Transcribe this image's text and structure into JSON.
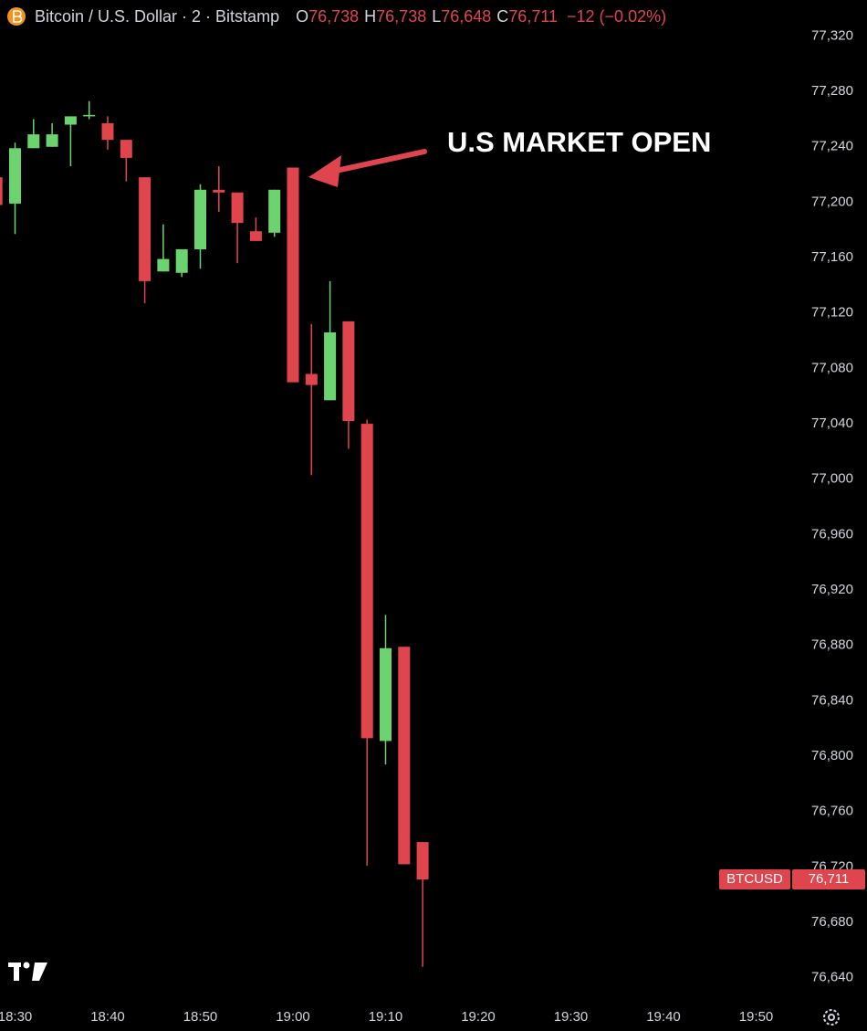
{
  "chart_data": {
    "type": "candlestick",
    "title": "Bitcoin / U.S. Dollar · 2 · Bitstamp",
    "ohlc_header": [
      {
        "letter": "O",
        "text": "76,738"
      },
      {
        "letter": "H",
        "text": "76,738"
      },
      {
        "letter": "L",
        "text": "76,648"
      },
      {
        "letter": "C",
        "text": "76,711"
      }
    ],
    "change_text": "−12 (−0.02%)",
    "annotation": "U.S MARKET OPEN",
    "x": [
      "18:28",
      "18:30",
      "18:32",
      "18:34",
      "18:36",
      "18:38",
      "18:40",
      "18:42",
      "18:44",
      "18:46",
      "18:48",
      "18:50",
      "18:52",
      "18:54",
      "18:56",
      "18:58",
      "19:00",
      "19:02",
      "19:04",
      "19:06",
      "19:08",
      "19:10",
      "19:12",
      "19:14"
    ],
    "open": [
      77218,
      77199,
      77239,
      77240,
      77256,
      77262,
      77257,
      77245,
      77218,
      77150,
      77149,
      77166,
      77209,
      77207,
      77179,
      77178,
      77225,
      77076,
      77057,
      77114,
      77040,
      76811,
      76879,
      76738
    ],
    "high": [
      77218,
      77243,
      77260,
      77257,
      77262,
      77273,
      77262,
      77245,
      77218,
      77184,
      77166,
      77213,
      77226,
      77207,
      77189,
      77209,
      77225,
      77112,
      77143,
      77114,
      77043,
      76902,
      76879,
      76738
    ],
    "low": [
      77198,
      77177,
      77239,
      77240,
      77226,
      77260,
      77238,
      77215,
      77127,
      77150,
      77146,
      77152,
      77193,
      77156,
      77172,
      77175,
      77070,
      77003,
      77057,
      77022,
      76721,
      76794,
      76722,
      76648
    ],
    "close": [
      77198,
      77239,
      77249,
      77249,
      77262,
      77263,
      77245,
      77232,
      77143,
      77159,
      77166,
      77209,
      77207,
      77185,
      77172,
      77209,
      77070,
      77068,
      77106,
      77042,
      76813,
      76878,
      76722,
      76711
    ],
    "up_color": "#6bd46f",
    "down_color": "#e0454e",
    "ylim": [
      76624,
      77346
    ],
    "yticks": [
      {
        "value": 77320,
        "label": "77,320"
      },
      {
        "value": 77280,
        "label": "77,280"
      },
      {
        "value": 77240,
        "label": "77,240"
      },
      {
        "value": 77200,
        "label": "77,200"
      },
      {
        "value": 77160,
        "label": "77,160"
      },
      {
        "value": 77120,
        "label": "77,120"
      },
      {
        "value": 77080,
        "label": "77,080"
      },
      {
        "value": 77040,
        "label": "77,040"
      },
      {
        "value": 77000,
        "label": "77,000"
      },
      {
        "value": 76960,
        "label": "76,960"
      },
      {
        "value": 76920,
        "label": "76,920"
      },
      {
        "value": 76880,
        "label": "76,880"
      },
      {
        "value": 76840,
        "label": "76,840"
      },
      {
        "value": 76800,
        "label": "76,800"
      },
      {
        "value": 76760,
        "label": "76,760"
      },
      {
        "value": 76720,
        "label": "76,720"
      },
      {
        "value": 76680,
        "label": "76,680"
      },
      {
        "value": 76640,
        "label": "76,640"
      }
    ],
    "xticks": [
      "18:30",
      "18:40",
      "18:50",
      "19:00",
      "19:10",
      "19:20",
      "19:30",
      "19:40",
      "19:50"
    ],
    "grid": false,
    "last_price": {
      "name": "BTCUSD",
      "value": 76711,
      "label": "76,711",
      "color": "#e0454e"
    }
  }
}
